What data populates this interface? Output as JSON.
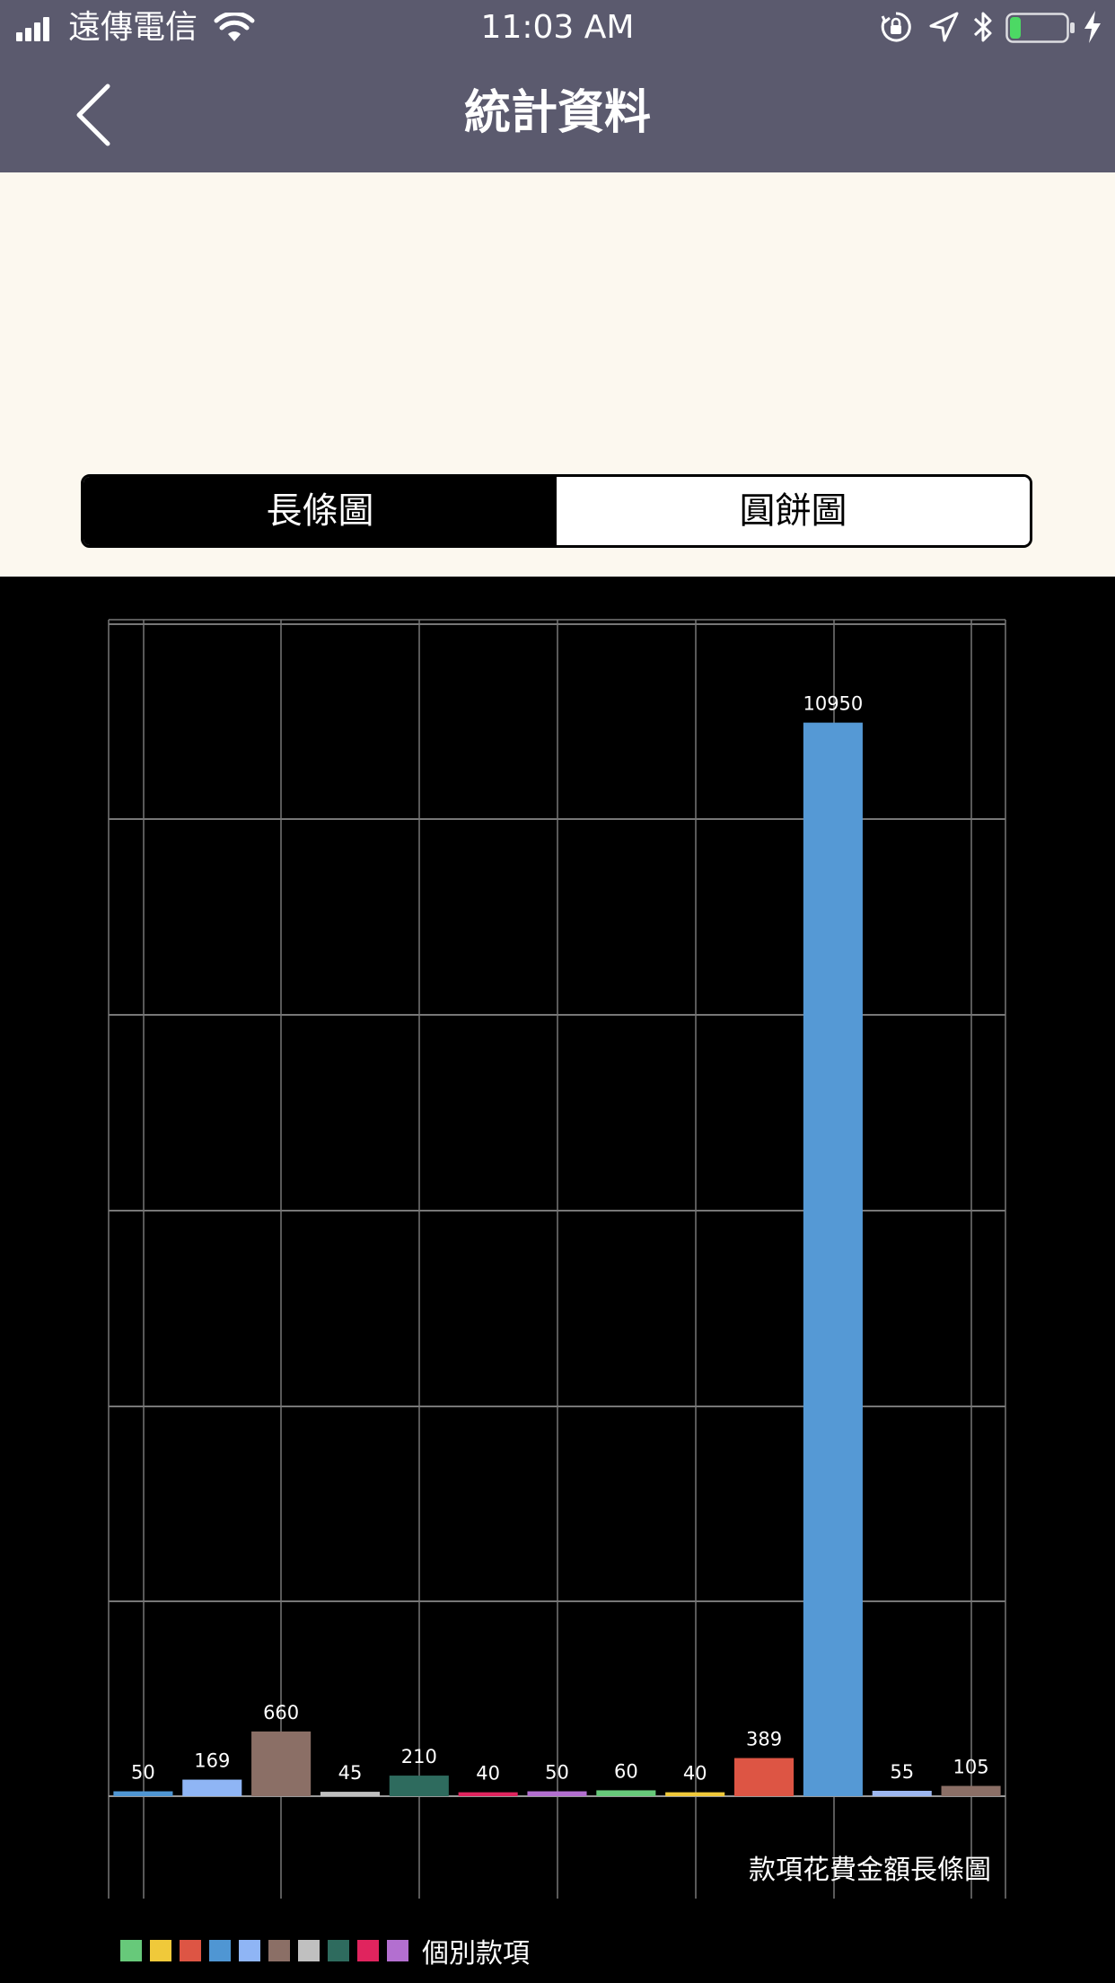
{
  "status_bar": {
    "carrier": "遠傳電信",
    "time": "11:03 AM",
    "icons": [
      "signal-icon",
      "wifi-icon",
      "orientation-lock-icon",
      "location-icon",
      "bluetooth-icon",
      "battery-icon",
      "charging-icon"
    ],
    "battery_level": 0.2,
    "battery_color": "#4cd964"
  },
  "nav": {
    "title": "統計資料",
    "back_icon": "chevron-left-icon",
    "background": "#5b5a6e"
  },
  "segmented": {
    "options": [
      "長條圖",
      "圓餅圖"
    ],
    "selected": "長條圖"
  },
  "chart_data": {
    "type": "bar",
    "categories": [
      "",
      "",
      "",
      "",
      "",
      "",
      "",
      "",
      "",
      "",
      "",
      "",
      ""
    ],
    "values": [
      50,
      169,
      660,
      45,
      210,
      40,
      50,
      60,
      40,
      389,
      10950,
      55,
      105
    ],
    "colors": [
      "#4f96d3",
      "#8fb5f5",
      "#8b6f66",
      "#c0c0c0",
      "#2e6b5e",
      "#e0245e",
      "#b36fd0",
      "#67c97a",
      "#f0c93a",
      "#dd5544",
      "#5599d5",
      "#9db7f0",
      "#8b6f66"
    ],
    "data_labels": [
      "50",
      "169",
      "660",
      "45",
      "210",
      "40",
      "50",
      "60",
      "40",
      "389",
      "10950",
      "55",
      "105"
    ],
    "description": "款項花費金額長條圖",
    "ylim": [
      0,
      12000
    ],
    "grid": true,
    "legend": {
      "label": "個別款項",
      "colors": [
        "#67c97a",
        "#f0c93a",
        "#dd5544",
        "#4f96d3",
        "#8fb5f5",
        "#8b6f66",
        "#c0c0c0",
        "#2e6b5e",
        "#e0245e",
        "#b36fd0"
      ],
      "placement": "bottom-left"
    }
  }
}
